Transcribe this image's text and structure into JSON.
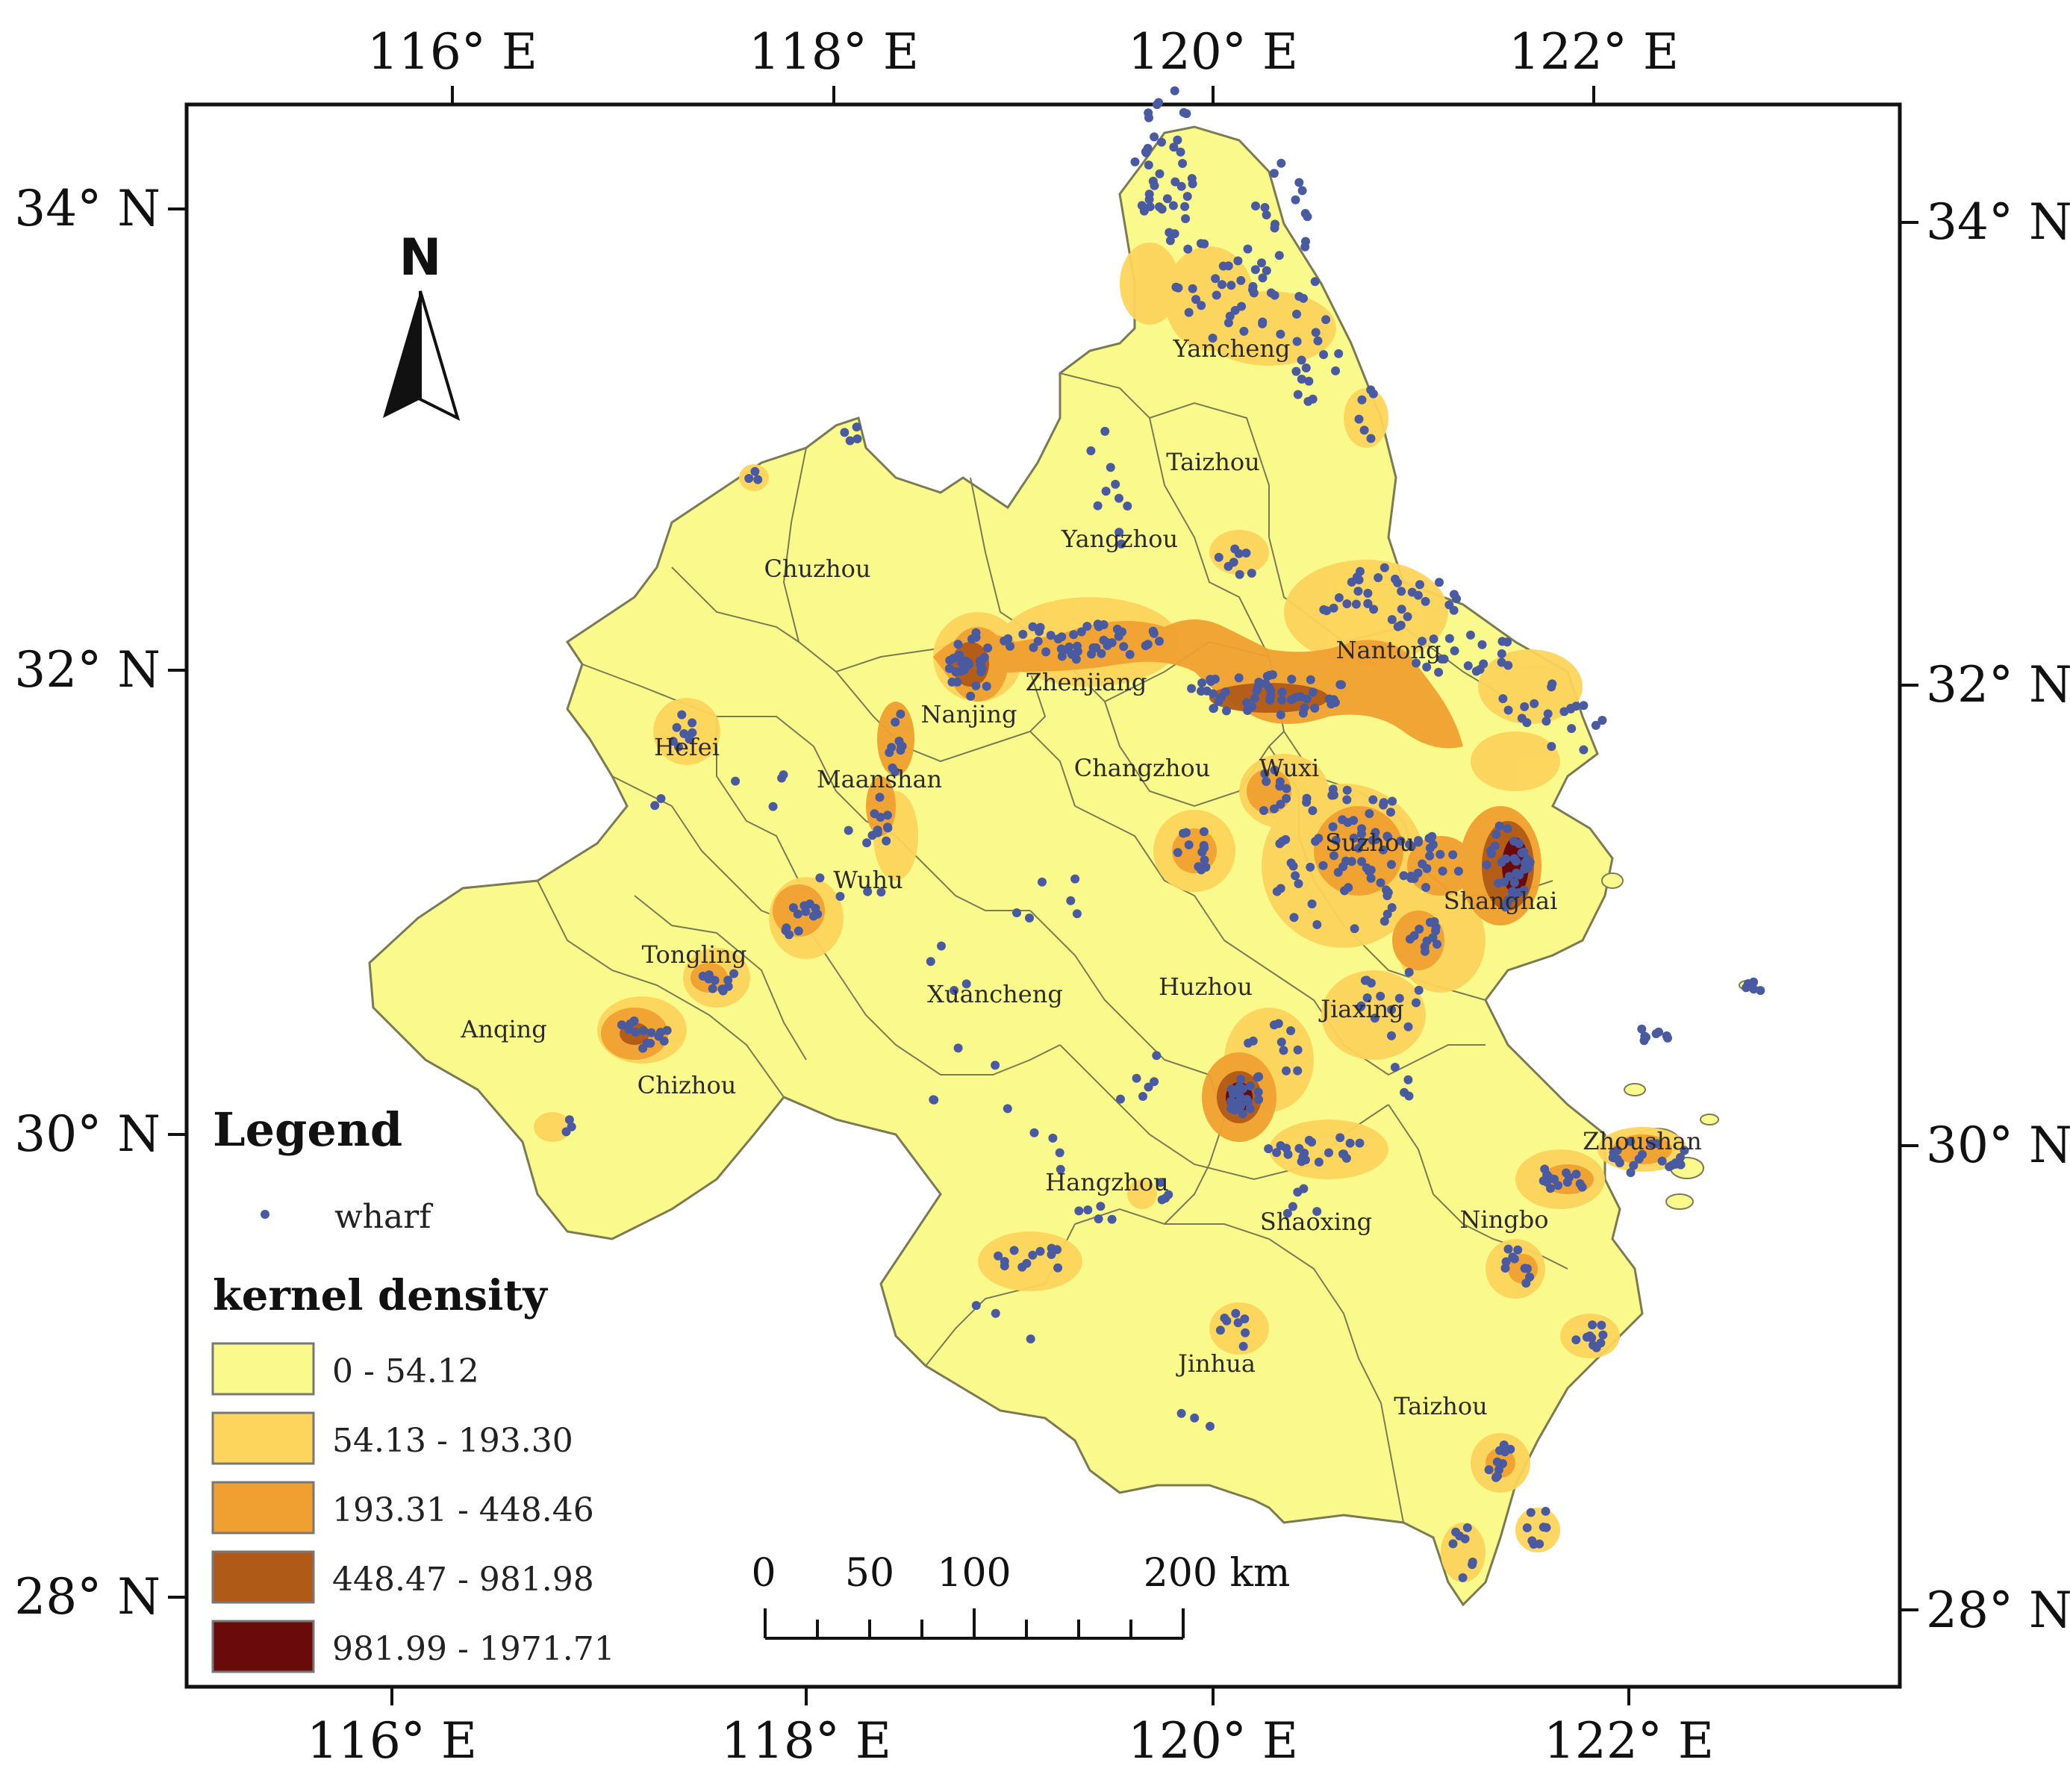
{
  "axes": {
    "top": [
      "116° E",
      "118° E",
      "120° E",
      "122° E"
    ],
    "bottom": [
      "116° E",
      "118° E",
      "120° E",
      "122° E"
    ],
    "left": [
      "34° N",
      "32° N",
      "30° N",
      "28° N"
    ],
    "right": [
      "34° N",
      "32° N",
      "30° N",
      "28° N"
    ]
  },
  "north_arrow": {
    "label": "N"
  },
  "cities": [
    "Yancheng",
    "Taizhou",
    "Yangzhou",
    "Chuzhou",
    "Nantong",
    "Zhenjiang",
    "Nanjing",
    "Hefei",
    "Maanshan",
    "Changzhou",
    "Wuxi",
    "Suzhou",
    "Shanghai",
    "Wuhu",
    "Tongling",
    "Xuancheng",
    "Huzhou",
    "Jiaxing",
    "Anqing",
    "Chizhou",
    "Zhoushan",
    "Hangzhou",
    "Shaoxing",
    "Ningbo",
    "Jinhua",
    "Taizhou"
  ],
  "legend": {
    "title": "Legend",
    "wharf_label": "wharf",
    "density_title": "kernel density",
    "classes": [
      {
        "label": "0 - 54.12",
        "color": "#fafa8c"
      },
      {
        "label": "54.13 - 193.30",
        "color": "#fdd45c"
      },
      {
        "label": "193.31 - 448.46",
        "color": "#f0a030"
      },
      {
        "label": "448.47 - 981.98",
        "color": "#b05a18"
      },
      {
        "label": "981.99 - 1971.71",
        "color": "#6b0a0a"
      }
    ]
  },
  "scale_bar": {
    "labels": [
      "0",
      "50",
      "100",
      "200 km"
    ]
  },
  "colors": {
    "wharf": "#4a5aa0",
    "land": "#fafa8c",
    "boundary": "#7a7a55"
  }
}
